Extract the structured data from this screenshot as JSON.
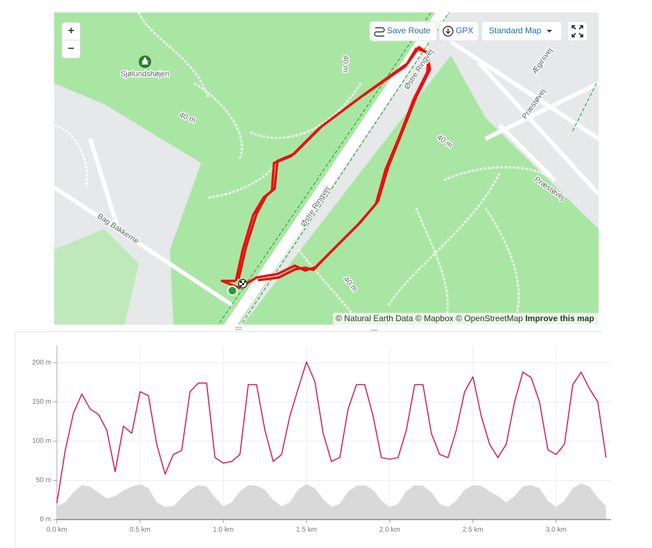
{
  "map": {
    "controls": {
      "zoom_in": "+",
      "zoom_out": "−",
      "save_route": "Save Route",
      "gpx": "GPX",
      "style": "Standard Map"
    },
    "labels": [
      "Sjølundshøjen",
      "40 m",
      "40 m",
      "40 m",
      "40 m",
      "Østre Ringvej",
      "Østre Ringvej",
      "Præstøvej",
      "Præstøvej",
      "Ægirsvej",
      "Bag Bakkerne"
    ],
    "attribution": {
      "text": "© Natural Earth Data © Mapbox © OpenStreetMap",
      "link": "Improve this map"
    }
  },
  "chart_data": {
    "type": "line",
    "x": [
      0,
      0.05,
      0.1,
      0.15,
      0.2,
      0.25,
      0.3,
      0.35,
      0.4,
      0.45,
      0.5,
      0.55,
      0.6,
      0.65,
      0.7,
      0.75,
      0.8,
      0.85,
      0.9,
      0.95,
      1.0,
      1.05,
      1.1,
      1.15,
      1.2,
      1.25,
      1.3,
      1.35,
      1.4,
      1.45,
      1.5,
      1.55,
      1.6,
      1.65,
      1.7,
      1.75,
      1.8,
      1.85,
      1.9,
      1.95,
      2.0,
      2.05,
      2.1,
      2.15,
      2.2,
      2.25,
      2.3,
      2.35,
      2.4,
      2.45,
      2.5,
      2.55,
      2.6,
      2.65,
      2.7,
      2.75,
      2.8,
      2.85,
      2.9,
      2.95,
      3.0,
      3.05,
      3.1,
      3.15,
      3.2,
      3.25,
      3.3
    ],
    "series": [
      {
        "type": "area",
        "color": "#d9d9d9",
        "values": [
          17,
          22,
          35,
          44,
          42,
          34,
          27,
          30,
          37,
          42,
          45,
          40,
          22,
          16,
          17,
          28,
          38,
          44,
          42,
          28,
          17,
          22,
          36,
          44,
          43,
          38,
          25,
          17,
          22,
          38,
          45,
          40,
          26,
          16,
          20,
          36,
          43,
          44,
          38,
          24,
          16,
          20,
          36,
          44,
          43,
          35,
          20,
          16,
          24,
          38,
          44,
          43,
          36,
          30,
          22,
          30,
          42,
          44,
          40,
          24,
          16,
          24,
          40,
          46,
          42,
          28,
          17
        ]
      },
      {
        "type": "line",
        "color": "#d4154f",
        "values": [
          21,
          88,
          136,
          160,
          141,
          134,
          114,
          61,
          119,
          110,
          163,
          158,
          96,
          58,
          83,
          88,
          163,
          174,
          174,
          79,
          72,
          74,
          83,
          172,
          172,
          114,
          74,
          83,
          132,
          167,
          201,
          176,
          110,
          74,
          79,
          141,
          172,
          172,
          132,
          79,
          77,
          79,
          114,
          172,
          172,
          110,
          83,
          79,
          114,
          163,
          182,
          132,
          96,
          79,
          96,
          150,
          188,
          181,
          150,
          89,
          83,
          96,
          172,
          188,
          167,
          150,
          79
        ]
      }
    ],
    "xlim": [
      0,
      3.33
    ],
    "xticks": [
      {
        "value": 0,
        "label": "0.0 km"
      },
      {
        "value": 0.5,
        "label": "0.5 km"
      },
      {
        "value": 1,
        "label": "1.0 km"
      },
      {
        "value": 1.5,
        "label": "1.5 km"
      },
      {
        "value": 2,
        "label": "2.0 km"
      },
      {
        "value": 2.5,
        "label": "2.5 km"
      },
      {
        "value": 3,
        "label": "3.0 km"
      }
    ],
    "ylim": [
      0,
      222
    ],
    "yticks": [
      {
        "value": 0,
        "label": "0 m"
      },
      {
        "value": 50,
        "label": "50 m"
      },
      {
        "value": 100,
        "label": "100 m"
      },
      {
        "value": 150,
        "label": "150 m"
      },
      {
        "value": 200,
        "label": "200 m"
      }
    ],
    "grid": true
  }
}
